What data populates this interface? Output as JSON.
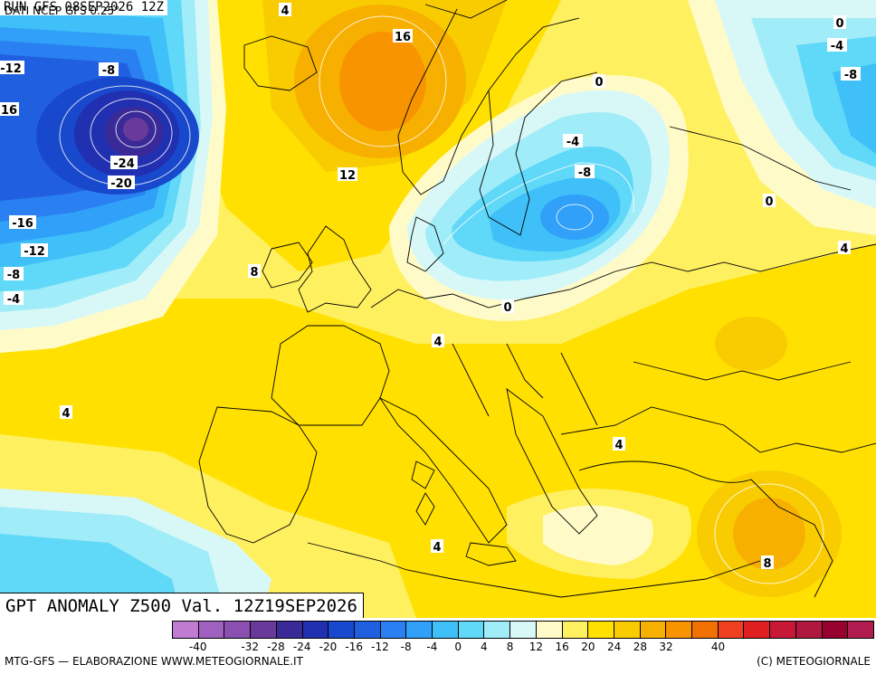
{
  "run_label": "RUN GFS 08SEP2026 12Z",
  "title": "GPT ANOMALY Z500 Val. 12Z19SEP2026",
  "source": "DATI NCEP GFS 0.25°",
  "credit": "MTG-GFS — ELABORAZIONE WWW.METEOGIORNALE.IT",
  "copyright": "(C) METEOGIORNALE",
  "legend": {
    "colors": [
      "#c07cd0",
      "#a060c0",
      "#8a4fb0",
      "#6a3a9a",
      "#3a2a98",
      "#2030b0",
      "#1848cc",
      "#2060e0",
      "#2a80f0",
      "#30a0f8",
      "#40c0f8",
      "#60d8f8",
      "#a0ecf8",
      "#d8f8f8",
      "#fffbc8",
      "#fff060",
      "#ffe000",
      "#f8cc00",
      "#f8b000",
      "#f89400",
      "#f07000",
      "#f04020",
      "#e02020",
      "#c81838",
      "#b01840",
      "#980030",
      "#b01c50"
    ],
    "ticks": [
      "-40",
      "-32",
      "-28",
      "-24",
      "-20",
      "-16",
      "-12",
      "-8",
      "-4",
      "0",
      "4",
      "8",
      "12",
      "16",
      "20",
      "24",
      "28",
      "32",
      "40"
    ]
  },
  "map_labels": [
    {
      "id": "l1",
      "text": "4"
    },
    {
      "id": "l2",
      "text": "16"
    },
    {
      "id": "l3",
      "text": "0"
    },
    {
      "id": "l4",
      "text": "-4"
    },
    {
      "id": "l5",
      "text": "-8"
    },
    {
      "id": "l6",
      "text": "-12"
    },
    {
      "id": "l7",
      "text": "-8"
    },
    {
      "id": "l8",
      "text": "16"
    },
    {
      "id": "l9",
      "text": "0"
    },
    {
      "id": "l10",
      "text": "-4"
    },
    {
      "id": "l11",
      "text": "-8"
    },
    {
      "id": "l12",
      "text": "-24"
    },
    {
      "id": "l13",
      "text": "-20"
    },
    {
      "id": "l14",
      "text": "12"
    },
    {
      "id": "l15",
      "text": "0"
    },
    {
      "id": "l16",
      "text": "-16"
    },
    {
      "id": "l17",
      "text": "-12"
    },
    {
      "id": "l18",
      "text": "-8"
    },
    {
      "id": "l19",
      "text": "-4"
    },
    {
      "id": "l20",
      "text": "8"
    },
    {
      "id": "l21",
      "text": "4"
    },
    {
      "id": "l22",
      "text": "0"
    },
    {
      "id": "l23",
      "text": "4"
    },
    {
      "id": "l24",
      "text": "4"
    },
    {
      "id": "l25",
      "text": "4"
    },
    {
      "id": "l26",
      "text": "4"
    },
    {
      "id": "l27",
      "text": "8"
    }
  ]
}
